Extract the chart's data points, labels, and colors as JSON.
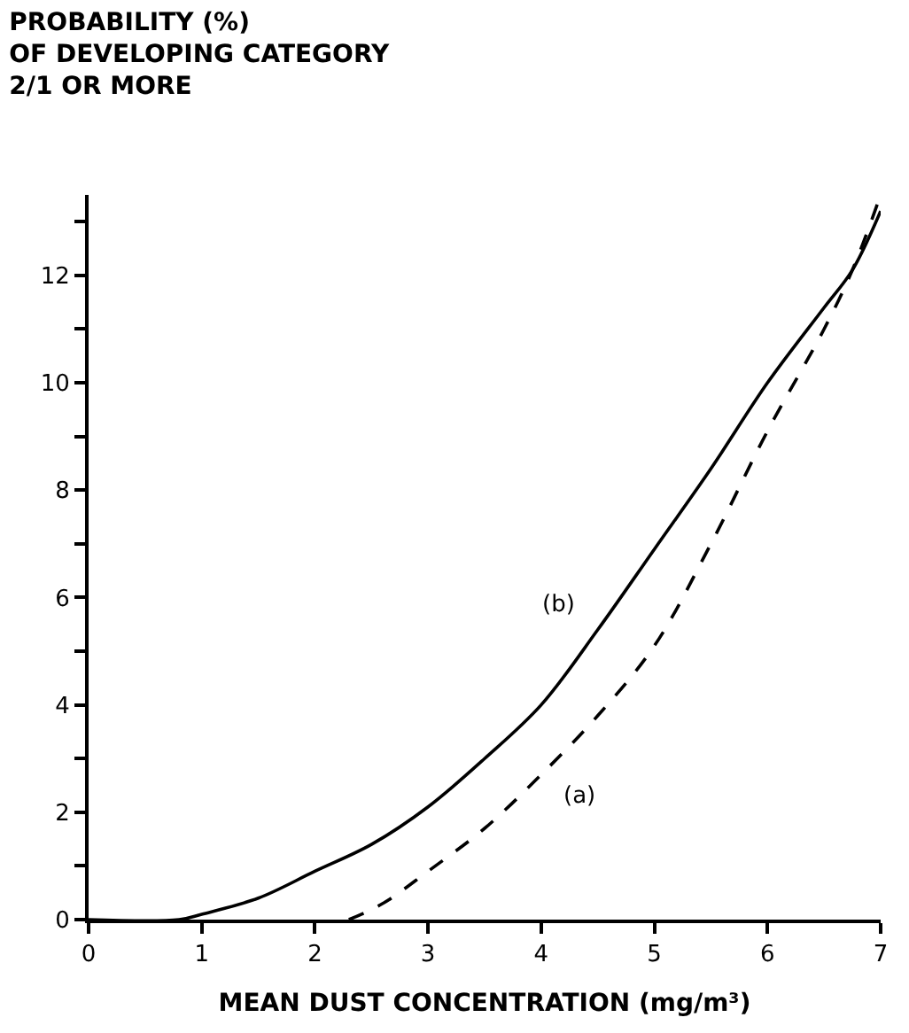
{
  "chart_data": {
    "type": "line",
    "title": "PROBABILITY (%)\nOF DEVELOPING CATEGORY\n2/1 OR MORE",
    "xlabel": "MEAN DUST CONCENTRATION (mg/m³)",
    "xlim": [
      0,
      7
    ],
    "xticks": [
      0,
      1,
      2,
      3,
      4,
      5,
      6,
      7
    ],
    "ylim": [
      0,
      13.5
    ],
    "yticks": [
      0,
      {
        "value": 1,
        "label": null
      },
      2,
      {
        "value": 3,
        "label": null
      },
      4,
      {
        "value": 5,
        "label": null
      },
      6,
      {
        "value": 7,
        "label": null
      },
      8,
      {
        "value": 9,
        "label": null
      },
      10,
      {
        "value": 11,
        "label": null
      },
      12,
      {
        "value": 13,
        "label": null
      }
    ],
    "grid": false,
    "legend": false,
    "marker": "none",
    "series": [
      {
        "name": "(a)",
        "color": "#000000",
        "line_style": "dashed",
        "x": [
          2.3,
          2.6,
          3,
          3.5,
          4,
          4.5,
          5,
          5.5,
          6,
          6.5,
          6.75,
          7
        ],
        "values": [
          0,
          0.3,
          0.9,
          1.7,
          2.7,
          3.8,
          5.1,
          7.0,
          9.1,
          11.0,
          12.1,
          13.5
        ]
      },
      {
        "name": "(b)",
        "color": "#000000",
        "line_style": "solid",
        "x": [
          0,
          0.8,
          1,
          1.5,
          2,
          2.5,
          3,
          3.5,
          4,
          4.5,
          5,
          5.5,
          6,
          6.5,
          6.75,
          7
        ],
        "values": [
          0,
          0,
          0.1,
          0.4,
          0.9,
          1.4,
          2.1,
          3.0,
          4.0,
          5.4,
          6.9,
          8.4,
          10.0,
          11.4,
          12.1,
          13.2
        ]
      }
    ]
  }
}
